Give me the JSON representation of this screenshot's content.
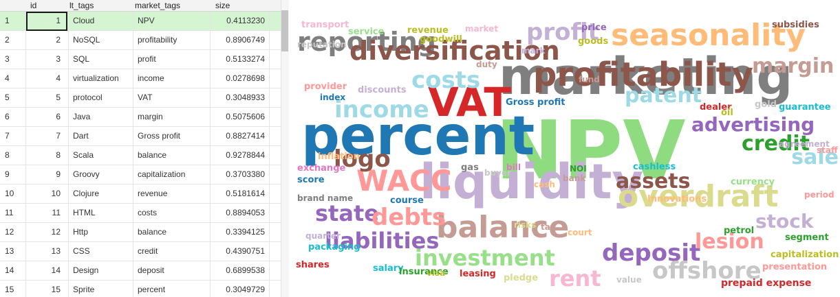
{
  "table": {
    "columns": [
      "id",
      "lt_tags",
      "market_tags",
      "size"
    ],
    "rows": [
      {
        "n": "1",
        "id": "1",
        "lt": "Cloud",
        "mk": "NPV",
        "sz": "0.4113230"
      },
      {
        "n": "2",
        "id": "2",
        "lt": "NoSQL",
        "mk": "profitability",
        "sz": "0.8906749"
      },
      {
        "n": "3",
        "id": "3",
        "lt": "SQL",
        "mk": "profit",
        "sz": "0.5133274"
      },
      {
        "n": "4",
        "id": "4",
        "lt": "virtualization",
        "mk": "income",
        "sz": "0.0278698"
      },
      {
        "n": "5",
        "id": "5",
        "lt": "protocol",
        "mk": "VAT",
        "sz": "0.3048933"
      },
      {
        "n": "6",
        "id": "6",
        "lt": "Java",
        "mk": "margin",
        "sz": "0.5075606"
      },
      {
        "n": "7",
        "id": "7",
        "lt": "Dart",
        "mk": "Gross profit",
        "sz": "0.8827414"
      },
      {
        "n": "8",
        "id": "8",
        "lt": "Scala",
        "mk": "balance",
        "sz": "0.9278844"
      },
      {
        "n": "9",
        "id": "9",
        "lt": "Groovy",
        "mk": "capitalization",
        "sz": "0.3703380"
      },
      {
        "n": "10",
        "id": "10",
        "lt": "Clojure",
        "mk": "revenue",
        "sz": "0.5181614"
      },
      {
        "n": "11",
        "id": "11",
        "lt": "HTML",
        "mk": "costs",
        "sz": "0.8894053"
      },
      {
        "n": "12",
        "id": "12",
        "lt": "Http",
        "mk": "balance",
        "sz": "0.3394125"
      },
      {
        "n": "13",
        "id": "13",
        "lt": "CSS",
        "mk": "credit",
        "sz": "0.4390751"
      },
      {
        "n": "14",
        "id": "14",
        "lt": "Design",
        "mk": "deposit",
        "sz": "0.6899538"
      },
      {
        "n": "15",
        "id": "15",
        "lt": "Sprite",
        "mk": "percent",
        "sz": "0.3049729"
      }
    ],
    "selected_row_color": "#d4f4d2"
  },
  "wordcloud": {
    "words": [
      {
        "t": "NPV",
        "c": "#8fdc80"
      },
      {
        "t": "percent",
        "c": "#1f77b4"
      },
      {
        "t": "marketing",
        "c": "#7f7f7f"
      },
      {
        "t": "liquidity",
        "c": "#c5b0d5"
      },
      {
        "t": "VAT",
        "c": "#d62728"
      },
      {
        "t": "profitability",
        "c": "#8c564b"
      },
      {
        "t": "seasonality",
        "c": "#ffbb78"
      },
      {
        "t": "balance",
        "c": "#c49c94"
      },
      {
        "t": "overdraft",
        "c": "#dbdb8d"
      },
      {
        "t": "reporting",
        "c": "#7f7f7f"
      },
      {
        "t": "diversification",
        "c": "#8c564b"
      },
      {
        "t": "income",
        "c": "#9edae5"
      },
      {
        "t": "costs",
        "c": "#9edae5"
      },
      {
        "t": "profit",
        "c": "#c5b0d5"
      },
      {
        "t": "patent",
        "c": "#9edae5"
      },
      {
        "t": "advertising",
        "c": "#9467bd"
      },
      {
        "t": "margin",
        "c": "#c49c94"
      },
      {
        "t": "WACC",
        "c": "#ff9896"
      },
      {
        "t": "logo",
        "c": "#8c564b"
      },
      {
        "t": "credit",
        "c": "#2ca02c"
      },
      {
        "t": "assets",
        "c": "#8c564b"
      },
      {
        "t": "sale",
        "c": "#9edae5"
      },
      {
        "t": "state",
        "c": "#9467bd"
      },
      {
        "t": "debts",
        "c": "#ff9896"
      },
      {
        "t": "liabilities",
        "c": "#9467bd"
      },
      {
        "t": "investment",
        "c": "#98df8a"
      },
      {
        "t": "rent",
        "c": "#f7b6d2"
      },
      {
        "t": "deposit",
        "c": "#9467bd"
      },
      {
        "t": "lesion",
        "c": "#ff9896"
      },
      {
        "t": "stock",
        "c": "#c5b0d5"
      },
      {
        "t": "offshore",
        "c": "#c7c7c7"
      },
      {
        "t": "prepaid expense",
        "c": "#d62728"
      },
      {
        "t": "transport",
        "c": "#f7b6d2"
      },
      {
        "t": "service",
        "c": "#98df8a"
      },
      {
        "t": "revenue",
        "c": "#bcbd22"
      },
      {
        "t": "market",
        "c": "#f7b6d2"
      },
      {
        "t": "price",
        "c": "#9467bd"
      },
      {
        "t": "subsidies",
        "c": "#8c564b"
      },
      {
        "t": "reputation",
        "c": "#c7c7c7"
      },
      {
        "t": "goodwill",
        "c": "#bcbd22"
      },
      {
        "t": "goods",
        "c": "#bcbd22"
      },
      {
        "t": "mark",
        "c": "#c5b0d5"
      },
      {
        "t": "duty",
        "c": "#c49c94"
      },
      {
        "t": "fund",
        "c": "#c49c94"
      },
      {
        "t": "provider",
        "c": "#ff9896"
      },
      {
        "t": "discounts",
        "c": "#c5b0d5"
      },
      {
        "t": "index",
        "c": "#1f77b4"
      },
      {
        "t": "Gross profit",
        "c": "#1f77b4"
      },
      {
        "t": "dealer",
        "c": "#d62728"
      },
      {
        "t": "oil",
        "c": "#bcbd22"
      },
      {
        "t": "gold",
        "c": "#c7c7c7"
      },
      {
        "t": "guarantee",
        "c": "#17becf"
      },
      {
        "t": "inflation",
        "c": "#ffbb78"
      },
      {
        "t": "agreement",
        "c": "#c5b0d5"
      },
      {
        "t": "staff",
        "c": "#ff9896"
      },
      {
        "t": "exchange",
        "c": "#e377c2"
      },
      {
        "t": "gas",
        "c": "#7f7f7f"
      },
      {
        "t": "buyer",
        "c": "#c7c7c7"
      },
      {
        "t": "bill",
        "c": "#e377c2"
      },
      {
        "t": "NOI",
        "c": "#2ca02c"
      },
      {
        "t": "cashless",
        "c": "#17becf"
      },
      {
        "t": "score",
        "c": "#1f77b4"
      },
      {
        "t": "bank",
        "c": "#c49c94"
      },
      {
        "t": "cash",
        "c": "#ffbb78"
      },
      {
        "t": "currency",
        "c": "#98df8a"
      },
      {
        "t": "brand name",
        "c": "#7f7f7f"
      },
      {
        "t": "course",
        "c": "#1f77b4"
      },
      {
        "t": "Innovations",
        "c": "#ffbb78"
      },
      {
        "t": "period",
        "c": "#ff9896"
      },
      {
        "t": "risks",
        "c": "#dbdb8d"
      },
      {
        "t": "tax",
        "c": "#c49c94"
      },
      {
        "t": "petrol",
        "c": "#2ca02c"
      },
      {
        "t": "quarter",
        "c": "#c5b0d5"
      },
      {
        "t": "court",
        "c": "#ffbb78"
      },
      {
        "t": "segment",
        "c": "#2ca02c"
      },
      {
        "t": "packaging",
        "c": "#17becf"
      },
      {
        "t": "capitalization",
        "c": "#bcbd22"
      },
      {
        "t": "shares",
        "c": "#d62728"
      },
      {
        "t": "salary",
        "c": "#17becf"
      },
      {
        "t": "insurance",
        "c": "#2ca02c"
      },
      {
        "t": "visa",
        "c": "#bcbd22"
      },
      {
        "t": "leasing",
        "c": "#d62728"
      },
      {
        "t": "pledge",
        "c": "#dbdb8d"
      },
      {
        "t": "value",
        "c": "#c7c7c7"
      },
      {
        "t": "presentation",
        "c": "#ff9896"
      }
    ]
  }
}
